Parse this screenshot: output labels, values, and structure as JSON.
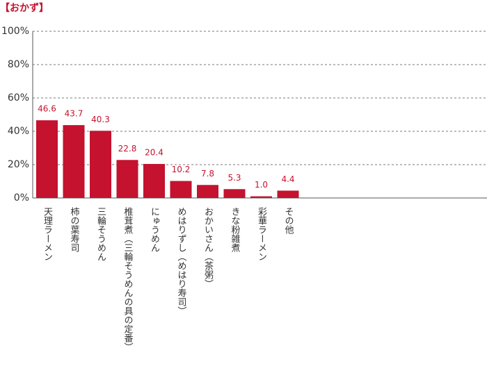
{
  "chart_data": {
    "type": "bar",
    "title": "【おかず】",
    "categories": [
      "天理ラーメン",
      "柿の葉寿司",
      "三輪そうめん",
      "椎茸煮（三輪そうめんの具の定番）",
      "にゅうめん",
      "めはりずし（めはり寿司）",
      "おかいさん（茶粥）",
      "きな粉雑煮",
      "彩華ラーメン",
      "その他"
    ],
    "values": [
      46.6,
      43.7,
      40.3,
      22.8,
      20.4,
      10.2,
      7.8,
      5.3,
      1.0,
      4.4
    ],
    "value_labels": [
      "46.6",
      "43.7",
      "40.3",
      "22.8",
      "20.4",
      "10.2",
      "7.8",
      "5.3",
      "1.0",
      "4.4"
    ],
    "color": "#c4122f",
    "ylim": [
      0,
      100
    ],
    "yticks": [
      {
        "value": 0,
        "label": "0%"
      },
      {
        "value": 20,
        "label": "20%"
      },
      {
        "value": 40,
        "label": "40%"
      },
      {
        "value": 60,
        "label": "60%"
      },
      {
        "value": 80,
        "label": "80%"
      },
      {
        "value": 100,
        "label": "100%"
      }
    ],
    "grid": true
  }
}
